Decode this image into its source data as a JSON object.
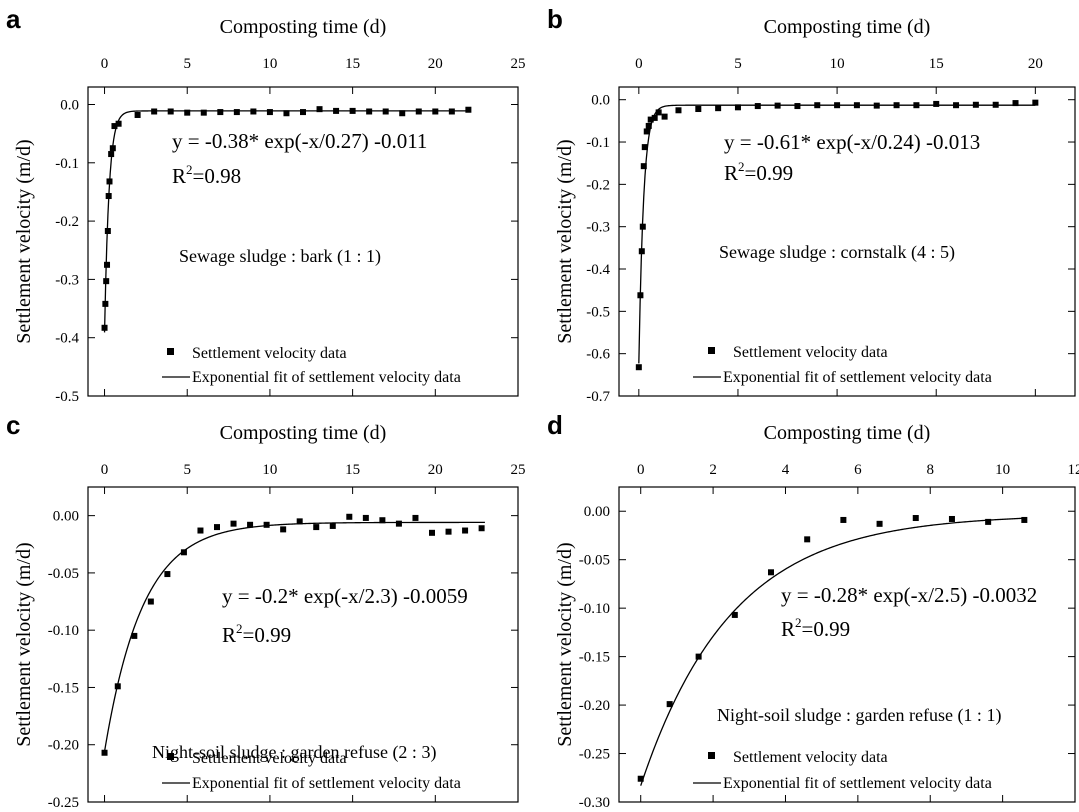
{
  "chart_data": [
    {
      "panel_label": "a",
      "type": "scatter",
      "title": "",
      "xlabel": "Composting time (d)",
      "ylabel": "Settlement velocity (m/d)",
      "x_axis_position": "top",
      "xlim": [
        -1,
        25
      ],
      "ylim": [
        -0.5,
        0.03
      ],
      "xticks": [
        0,
        5,
        10,
        15,
        20,
        25
      ],
      "yticks": [
        0.0,
        -0.1,
        -0.2,
        -0.3,
        -0.4,
        -0.5
      ],
      "ytick_labels": [
        "0.0",
        "-0.1",
        "-0.2",
        "-0.3",
        "-0.4",
        "-0.5"
      ],
      "equation": "y = -0.38* exp(-x/0.27) -0.011",
      "r2_label": "R",
      "r2_value": "=0.98",
      "annotation": "Sewage sludge : bark (1 : 1)",
      "legend": [
        "Settlement velocity data",
        "Exponential fit of settlement velocity data"
      ],
      "legend_placement": "bottom",
      "fit": {
        "a": -0.38,
        "t": 0.27,
        "c": -0.011,
        "x_start": 0,
        "x_end": 22
      },
      "series": [
        {
          "values": [
            [
              0.0,
              -0.383
            ],
            [
              0.05,
              -0.342
            ],
            [
              0.1,
              -0.303
            ],
            [
              0.15,
              -0.275
            ],
            [
              0.2,
              -0.217
            ],
            [
              0.25,
              -0.157
            ],
            [
              0.3,
              -0.132
            ],
            [
              0.4,
              -0.085
            ],
            [
              0.5,
              -0.075
            ],
            [
              0.6,
              -0.037
            ],
            [
              0.85,
              -0.033
            ],
            [
              2.0,
              -0.018
            ],
            [
              3.0,
              -0.012
            ],
            [
              4.0,
              -0.012
            ],
            [
              5.0,
              -0.014
            ],
            [
              6.0,
              -0.014
            ],
            [
              7.0,
              -0.013
            ],
            [
              8.0,
              -0.013
            ],
            [
              9.0,
              -0.012
            ],
            [
              10.0,
              -0.013
            ],
            [
              11.0,
              -0.015
            ],
            [
              12.0,
              -0.013
            ],
            [
              13.0,
              -0.008
            ],
            [
              14.0,
              -0.011
            ],
            [
              15.0,
              -0.011
            ],
            [
              16.0,
              -0.012
            ],
            [
              17.0,
              -0.012
            ],
            [
              18.0,
              -0.015
            ],
            [
              19.0,
              -0.012
            ],
            [
              20.0,
              -0.012
            ],
            [
              21.0,
              -0.012
            ],
            [
              22.0,
              -0.009
            ]
          ]
        }
      ]
    },
    {
      "panel_label": "b",
      "type": "scatter",
      "title": "",
      "xlabel": "Composting time (d)",
      "ylabel": "Settlement velocity (m/d)",
      "x_axis_position": "top",
      "xlim": [
        -1,
        22
      ],
      "ylim": [
        -0.7,
        0.03
      ],
      "xticks": [
        0,
        5,
        10,
        15,
        20
      ],
      "yticks": [
        0.0,
        -0.1,
        -0.2,
        -0.3,
        -0.4,
        -0.5,
        -0.6,
        -0.7
      ],
      "ytick_labels": [
        "0.0",
        "-0.1",
        "-0.2",
        "-0.3",
        "-0.4",
        "-0.5",
        "-0.6",
        "-0.7"
      ],
      "equation": "y = -0.61* exp(-x/0.24) -0.013",
      "r2_label": "R",
      "r2_value": "=0.99",
      "annotation": "Sewage sludge : cornstalk (4 : 5)",
      "legend": [
        "Settlement velocity data",
        "Exponential fit of settlement velocity data"
      ],
      "legend_placement": "bottom",
      "fit": {
        "a": -0.61,
        "t": 0.24,
        "c": -0.013,
        "x_start": 0,
        "x_end": 20
      },
      "series": [
        {
          "values": [
            [
              0.0,
              -0.632
            ],
            [
              0.08,
              -0.462
            ],
            [
              0.15,
              -0.358
            ],
            [
              0.2,
              -0.3
            ],
            [
              0.25,
              -0.157
            ],
            [
              0.3,
              -0.112
            ],
            [
              0.4,
              -0.075
            ],
            [
              0.5,
              -0.062
            ],
            [
              0.6,
              -0.047
            ],
            [
              0.8,
              -0.043
            ],
            [
              1.0,
              -0.03
            ],
            [
              1.3,
              -0.04
            ],
            [
              2.0,
              -0.025
            ],
            [
              3.0,
              -0.022
            ],
            [
              4.0,
              -0.02
            ],
            [
              5.0,
              -0.018
            ],
            [
              6.0,
              -0.015
            ],
            [
              7.0,
              -0.014
            ],
            [
              8.0,
              -0.015
            ],
            [
              9.0,
              -0.013
            ],
            [
              10.0,
              -0.013
            ],
            [
              11.0,
              -0.013
            ],
            [
              12.0,
              -0.014
            ],
            [
              13.0,
              -0.013
            ],
            [
              14.0,
              -0.013
            ],
            [
              15.0,
              -0.01
            ],
            [
              16.0,
              -0.013
            ],
            [
              17.0,
              -0.012
            ],
            [
              18.0,
              -0.012
            ],
            [
              19.0,
              -0.008
            ],
            [
              20.0,
              -0.007
            ]
          ]
        }
      ]
    },
    {
      "panel_label": "c",
      "type": "scatter",
      "title": "",
      "xlabel": "Composting time (d)",
      "ylabel": "Settlement velocity (m/d)",
      "x_axis_position": "top",
      "xlim": [
        -1,
        25
      ],
      "ylim": [
        -0.25,
        0.025
      ],
      "xticks": [
        0,
        5,
        10,
        15,
        20,
        25
      ],
      "yticks": [
        0.0,
        -0.05,
        -0.1,
        -0.15,
        -0.2,
        -0.25
      ],
      "ytick_labels": [
        "0.00",
        "-0.05",
        "-0.10",
        "-0.15",
        "-0.20",
        "-0.25"
      ],
      "equation": "y = -0.2* exp(-x/2.3) -0.0059",
      "r2_label": "R",
      "r2_value": "=0.99",
      "annotation": "Night-soil sludge : garden refuse (2 : 3)",
      "legend": [
        "Settlement velocity data",
        "Exponential fit of settlement velocity data"
      ],
      "legend_placement": "bottom",
      "fit": {
        "a": -0.2,
        "t": 2.3,
        "c": -0.0059,
        "x_start": 0,
        "x_end": 23
      },
      "series": [
        {
          "values": [
            [
              0.0,
              -0.207
            ],
            [
              0.8,
              -0.149
            ],
            [
              1.8,
              -0.105
            ],
            [
              2.8,
              -0.075
            ],
            [
              3.8,
              -0.051
            ],
            [
              4.8,
              -0.032
            ],
            [
              5.8,
              -0.013
            ],
            [
              6.8,
              -0.01
            ],
            [
              7.8,
              -0.007
            ],
            [
              8.8,
              -0.008
            ],
            [
              9.8,
              -0.008
            ],
            [
              10.8,
              -0.012
            ],
            [
              11.8,
              -0.005
            ],
            [
              12.8,
              -0.01
            ],
            [
              13.8,
              -0.009
            ],
            [
              14.8,
              -0.001
            ],
            [
              15.8,
              -0.002
            ],
            [
              16.8,
              -0.004
            ],
            [
              17.8,
              -0.007
            ],
            [
              18.8,
              -0.002
            ],
            [
              19.8,
              -0.015
            ],
            [
              20.8,
              -0.014
            ],
            [
              21.8,
              -0.013
            ],
            [
              22.8,
              -0.011
            ]
          ]
        }
      ]
    },
    {
      "panel_label": "d",
      "type": "scatter",
      "title": "",
      "xlabel": "Composting time (d)",
      "ylabel": "Settlement velocity (m/d)",
      "x_axis_position": "top",
      "xlim": [
        -0.6,
        12
      ],
      "ylim": [
        -0.3,
        0.025
      ],
      "xticks": [
        0,
        2,
        4,
        6,
        8,
        10,
        12
      ],
      "yticks": [
        0.0,
        -0.05,
        -0.1,
        -0.15,
        -0.2,
        -0.25,
        -0.3
      ],
      "ytick_labels": [
        "0.00",
        "-0.05",
        "-0.10",
        "-0.15",
        "-0.20",
        "-0.25",
        "-0.30"
      ],
      "equation": "y = -0.28* exp(-x/2.5) -0.0032",
      "r2_label": "R",
      "r2_value": "=0.99",
      "annotation": "Night-soil sludge : garden refuse (1 : 1)",
      "legend": [
        "Settlement velocity data",
        "Exponential fit of settlement velocity data"
      ],
      "legend_placement": "bottom",
      "fit": {
        "a": -0.28,
        "t": 2.5,
        "c": -0.0032,
        "x_start": 0,
        "x_end": 10.6
      },
      "series": [
        {
          "values": [
            [
              0.0,
              -0.276
            ],
            [
              0.8,
              -0.199
            ],
            [
              1.6,
              -0.15
            ],
            [
              2.6,
              -0.107
            ],
            [
              3.6,
              -0.063
            ],
            [
              4.6,
              -0.029
            ],
            [
              5.6,
              -0.009
            ],
            [
              6.6,
              -0.013
            ],
            [
              7.6,
              -0.007
            ],
            [
              8.6,
              -0.008
            ],
            [
              9.6,
              -0.011
            ],
            [
              10.6,
              -0.009
            ]
          ]
        }
      ]
    }
  ]
}
